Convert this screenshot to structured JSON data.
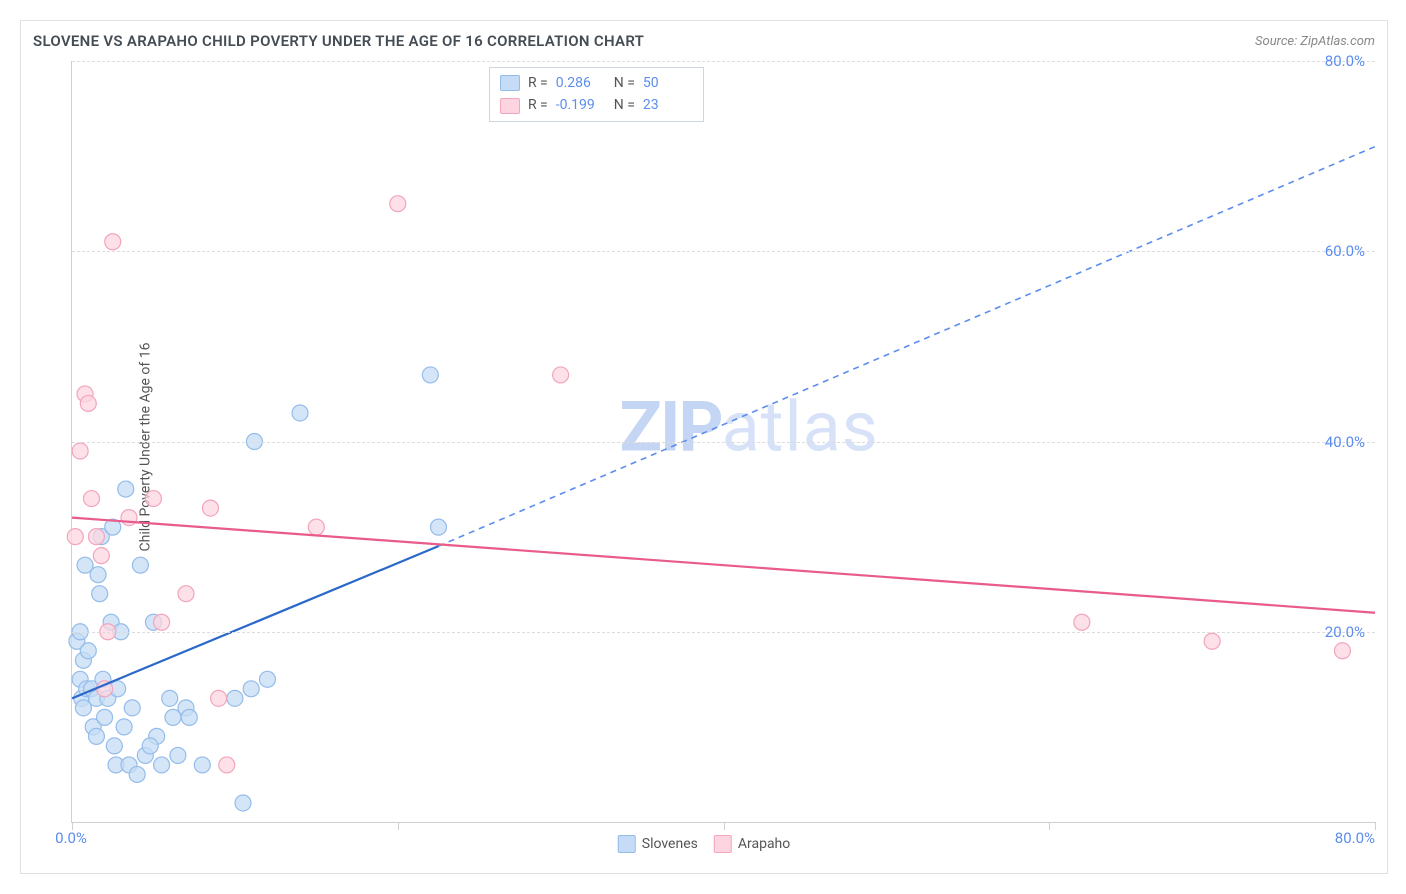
{
  "title": "SLOVENE VS ARAPAHO CHILD POVERTY UNDER THE AGE OF 16 CORRELATION CHART",
  "source": "Source: ZipAtlas.com",
  "y_axis_label": "Child Poverty Under the Age of 16",
  "x_min": 0,
  "x_max": 80,
  "y_min": 0,
  "y_max": 80,
  "y_ticks": [
    20,
    40,
    60,
    80
  ],
  "y_tick_labels": [
    "20.0%",
    "40.0%",
    "60.0%",
    "80.0%"
  ],
  "x_ticks": [
    0,
    20,
    40,
    60,
    80
  ],
  "x_tick_labels_shown": {
    "min": "0.0%",
    "max": "80.0%"
  },
  "grid_color": "#dcdcdc",
  "border_color": "#d0d0d0",
  "series": {
    "slovenes": {
      "label": "Slovenes",
      "fill": "#c6dcf6",
      "stroke": "#94bcea",
      "trend_color": "#2a69c9",
      "trend_dash_color": "#5b8def",
      "R": 0.286,
      "N": 50,
      "points": [
        [
          0.3,
          19
        ],
        [
          0.5,
          20
        ],
        [
          0.5,
          15
        ],
        [
          0.6,
          13
        ],
        [
          0.7,
          12
        ],
        [
          0.7,
          17
        ],
        [
          0.8,
          27
        ],
        [
          0.9,
          14
        ],
        [
          1.0,
          18
        ],
        [
          1.2,
          14
        ],
        [
          1.3,
          10
        ],
        [
          1.5,
          9
        ],
        [
          1.5,
          13
        ],
        [
          1.6,
          26
        ],
        [
          1.7,
          24
        ],
        [
          1.8,
          30
        ],
        [
          1.9,
          15
        ],
        [
          2.0,
          11
        ],
        [
          2.2,
          13
        ],
        [
          2.4,
          21
        ],
        [
          2.5,
          31
        ],
        [
          2.6,
          8
        ],
        [
          2.7,
          6
        ],
        [
          2.8,
          14
        ],
        [
          3.0,
          20
        ],
        [
          3.2,
          10
        ],
        [
          3.3,
          35
        ],
        [
          3.5,
          6
        ],
        [
          4.0,
          5
        ],
        [
          4.2,
          27
        ],
        [
          4.5,
          7
        ],
        [
          5.0,
          21
        ],
        [
          5.2,
          9
        ],
        [
          5.5,
          6
        ],
        [
          6.0,
          13
        ],
        [
          6.2,
          11
        ],
        [
          6.5,
          7
        ],
        [
          7.0,
          12
        ],
        [
          7.2,
          11
        ],
        [
          8.0,
          6
        ],
        [
          10.0,
          13
        ],
        [
          11.0,
          14
        ],
        [
          11.2,
          40
        ],
        [
          12.0,
          15
        ],
        [
          14.0,
          43
        ],
        [
          22.0,
          47
        ],
        [
          22.5,
          31
        ],
        [
          10.5,
          2
        ],
        [
          4.8,
          8
        ],
        [
          3.7,
          12
        ]
      ],
      "trend_solid": {
        "x1": 0,
        "y1": 13,
        "x2": 22.5,
        "y2": 29
      },
      "trend_dash": {
        "x1": 22.5,
        "y1": 29,
        "x2": 80,
        "y2": 71
      }
    },
    "arapaho": {
      "label": "Arapaho",
      "fill": "#fcd5e0",
      "stroke": "#f2a5bb",
      "trend_color": "#e95b8a",
      "R": -0.199,
      "N": 23,
      "points": [
        [
          0.2,
          30
        ],
        [
          0.5,
          39
        ],
        [
          0.8,
          45
        ],
        [
          1.0,
          44
        ],
        [
          1.2,
          34
        ],
        [
          1.5,
          30
        ],
        [
          1.8,
          28
        ],
        [
          2.0,
          14
        ],
        [
          2.2,
          20
        ],
        [
          2.5,
          61
        ],
        [
          3.5,
          32
        ],
        [
          5.0,
          34
        ],
        [
          5.5,
          21
        ],
        [
          7.0,
          24
        ],
        [
          8.5,
          33
        ],
        [
          9.0,
          13
        ],
        [
          15.0,
          31
        ],
        [
          9.5,
          6
        ],
        [
          20.0,
          65
        ],
        [
          30.0,
          47
        ],
        [
          62.0,
          21
        ],
        [
          70.0,
          19
        ],
        [
          78.0,
          18
        ]
      ],
      "trend": {
        "x1": 0,
        "y1": 32,
        "x2": 80,
        "y2": 22
      }
    }
  },
  "bottom_legend": [
    {
      "label": "Slovenes",
      "fill": "#c6dcf6",
      "stroke": "#94bcea"
    },
    {
      "label": "Arapaho",
      "fill": "#fcd5e0",
      "stroke": "#f2a5bb"
    }
  ],
  "stat_legend_rows": [
    {
      "fill": "#c6dcf6",
      "stroke": "#94bcea",
      "Rlabel": "R =",
      "R": "0.286",
      "Nlabel": "N =",
      "N": "50"
    },
    {
      "fill": "#fcd5e0",
      "stroke": "#f2a5bb",
      "Rlabel": "R =",
      "R": "-0.199",
      "Nlabel": "N =",
      "N": "23"
    }
  ],
  "watermark": {
    "bold": "ZIP",
    "light": "atlas"
  },
  "marker_radius": 8,
  "marker_opacity": 0.75,
  "trend_width": 2.2
}
